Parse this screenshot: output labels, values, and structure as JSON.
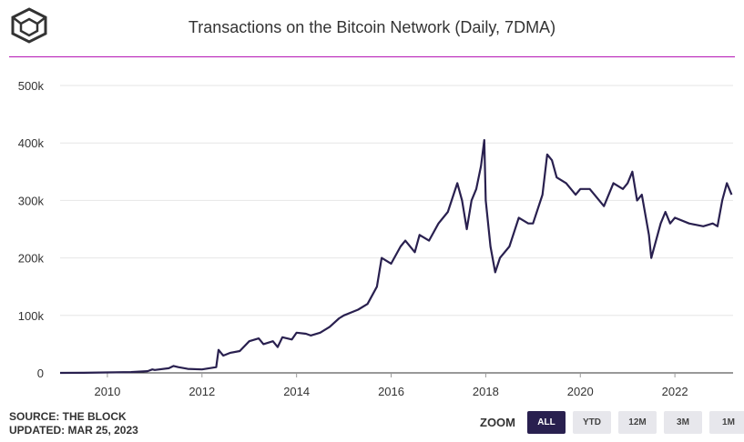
{
  "header": {
    "title": "Transactions on the Bitcoin Network (Daily, 7DMA)"
  },
  "footer": {
    "source": "SOURCE: THE BLOCK",
    "updated": "UPDATED: MAR 25, 2023"
  },
  "zoom": {
    "label": "ZOOM",
    "buttons": [
      "ALL",
      "YTD",
      "12M",
      "3M",
      "1M"
    ],
    "active": "ALL"
  },
  "colors": {
    "line": "#29204f",
    "accent_rule": "#b515b5",
    "active_button": "#29204f",
    "button": "#e7e7ec"
  },
  "chart_data": {
    "type": "line",
    "title": "Transactions on the Bitcoin Network (Daily, 7DMA)",
    "xlabel": "",
    "ylabel": "",
    "xlim": [
      2009.0,
      2023.23
    ],
    "ylim": [
      0,
      500000
    ],
    "x_ticks": [
      "2010",
      "2012",
      "2014",
      "2016",
      "2018",
      "2020",
      "2022"
    ],
    "y_ticks": [
      "0",
      "100k",
      "200k",
      "300k",
      "400k",
      "500k"
    ],
    "grid": "horizontal",
    "legend": "none",
    "series": [
      {
        "x": [
          2009.0,
          2009.5,
          2010.0,
          2010.5,
          2010.85,
          2010.95,
          2011.0,
          2011.3,
          2011.4,
          2011.5,
          2011.7,
          2012.0,
          2012.3,
          2012.35,
          2012.4,
          2012.45,
          2012.6,
          2012.8,
          2013.0,
          2013.2,
          2013.3,
          2013.5,
          2013.6,
          2013.7,
          2013.9,
          2014.0,
          2014.2,
          2014.3,
          2014.5,
          2014.7,
          2014.9,
          2015.0,
          2015.3,
          2015.5,
          2015.7,
          2015.8,
          2016.0,
          2016.2,
          2016.3,
          2016.5,
          2016.6,
          2016.8,
          2017.0,
          2017.2,
          2017.4,
          2017.5,
          2017.6,
          2017.7,
          2017.8,
          2017.9,
          2017.97,
          2018.0,
          2018.1,
          2018.2,
          2018.3,
          2018.5,
          2018.7,
          2018.9,
          2019.0,
          2019.2,
          2019.3,
          2019.4,
          2019.5,
          2019.7,
          2019.9,
          2020.0,
          2020.2,
          2020.3,
          2020.5,
          2020.7,
          2020.9,
          2021.0,
          2021.1,
          2021.2,
          2021.3,
          2021.45,
          2021.5,
          2021.7,
          2021.8,
          2021.9,
          2022.0,
          2022.3,
          2022.6,
          2022.8,
          2022.9,
          2023.0,
          2023.1,
          2023.2
        ],
        "y": [
          0,
          200,
          800,
          1500,
          3000,
          6000,
          5000,
          8000,
          12000,
          10000,
          7000,
          6000,
          10000,
          40000,
          35000,
          30000,
          35000,
          38000,
          55000,
          60000,
          50000,
          55000,
          45000,
          62000,
          58000,
          70000,
          68000,
          65000,
          70000,
          80000,
          95000,
          100000,
          110000,
          120000,
          150000,
          200000,
          190000,
          220000,
          230000,
          210000,
          240000,
          230000,
          260000,
          280000,
          330000,
          300000,
          250000,
          300000,
          320000,
          360000,
          405000,
          300000,
          220000,
          175000,
          200000,
          220000,
          270000,
          260000,
          260000,
          310000,
          380000,
          370000,
          340000,
          330000,
          310000,
          320000,
          320000,
          310000,
          290000,
          330000,
          320000,
          330000,
          350000,
          300000,
          310000,
          240000,
          200000,
          260000,
          280000,
          260000,
          270000,
          260000,
          255000,
          260000,
          255000,
          300000,
          330000,
          310000
        ]
      }
    ]
  }
}
